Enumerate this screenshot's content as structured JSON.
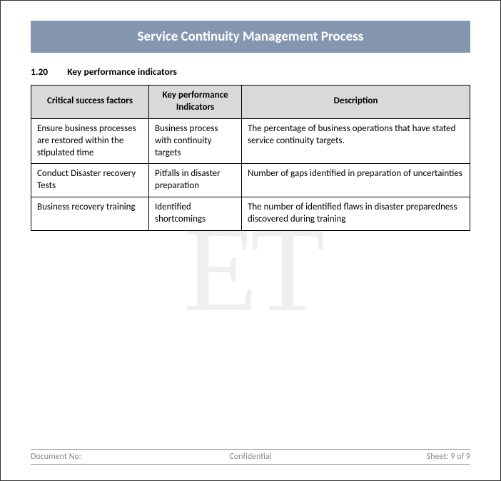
{
  "banner": {
    "title": "Service Continuity Management Process"
  },
  "section": {
    "number": "1.20",
    "title": "Key performance indicators"
  },
  "table": {
    "headers": {
      "csf": "Critical success factors",
      "kpi": "Key performance Indicators",
      "desc": "Description"
    },
    "rows": [
      {
        "csf": "Ensure business processes are restored within the stipulated time",
        "kpi": "Business process with continuity targets",
        "desc": "The percentage of business operations that have stated service continuity targets."
      },
      {
        "csf": "Conduct Disaster recovery Tests",
        "kpi": "Pitfalls in disaster preparation",
        "desc": "Number of gaps identified in preparation of uncertainties"
      },
      {
        "csf": "Business recovery training",
        "kpi": "Identified shortcomings",
        "desc": "The number of identified flaws in disaster preparedness discovered during training"
      }
    ]
  },
  "watermark": {
    "text": "ET"
  },
  "footer": {
    "left": "Document No:",
    "center": "Confidential",
    "right": "Sheet: 9 of 9"
  },
  "colors": {
    "banner_bg": "#8496b0",
    "banner_fg": "#ffffff",
    "header_bg": "#d9d9d9",
    "border": "#000000",
    "footer_fg": "#888888",
    "watermark": "rgba(120,120,120,0.12)"
  }
}
